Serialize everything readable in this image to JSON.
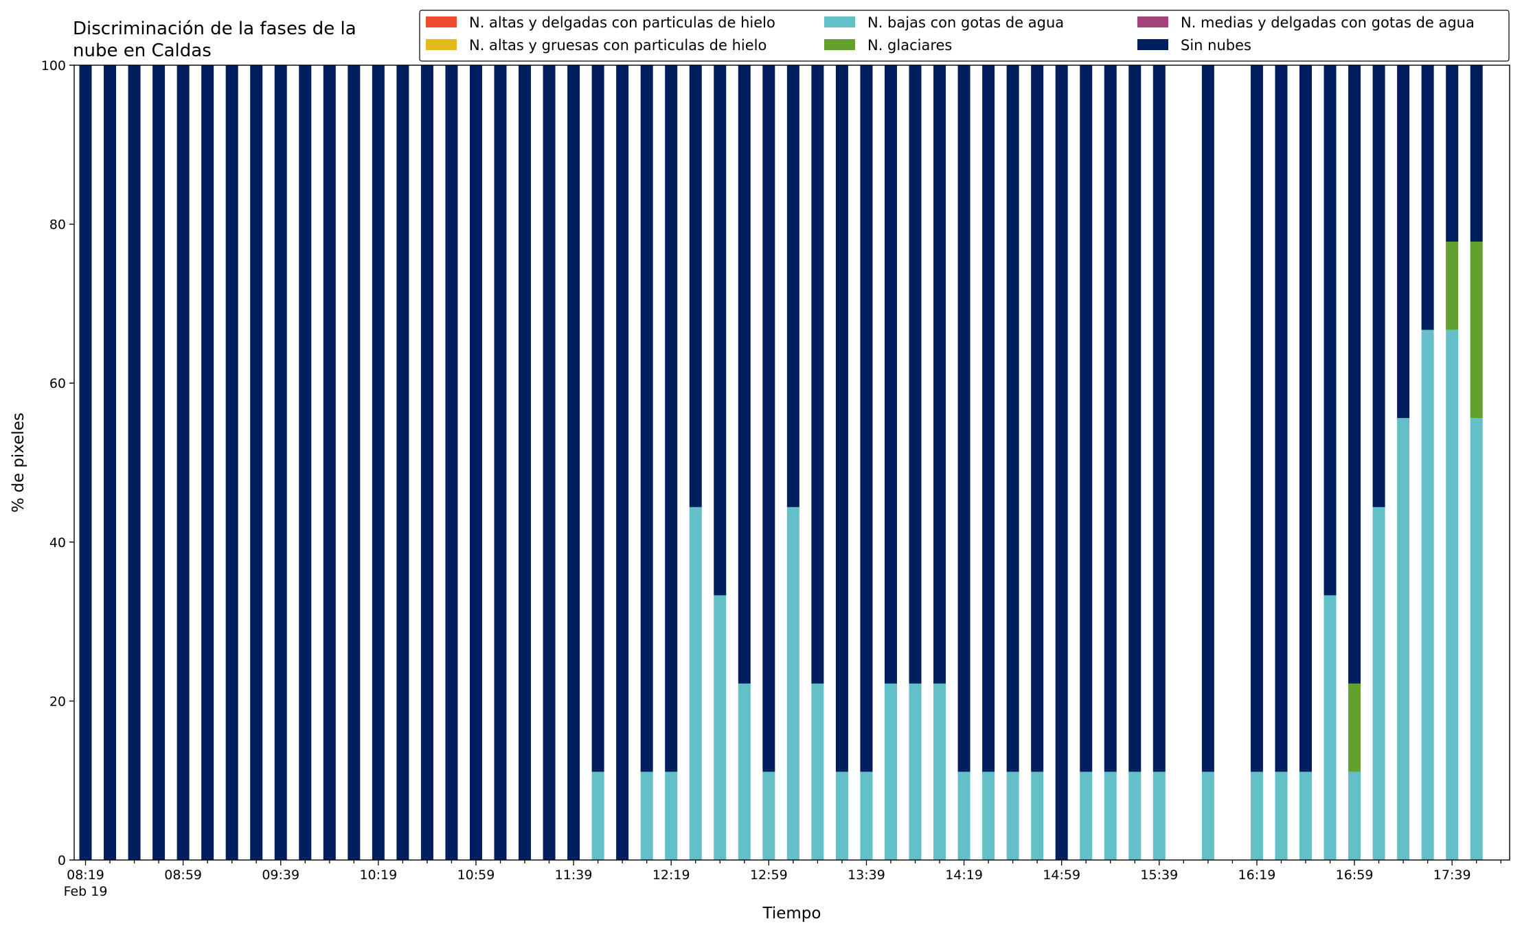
{
  "chart_data": {
    "type": "bar",
    "stacked": true,
    "title": "Discriminación de la fases de la nube en Caldas",
    "title_lines": [
      "Discriminación de la fases de la",
      "nube en Caldas"
    ],
    "xlabel": "Tiempo",
    "ylabel": "% de pixeles",
    "ylim": [
      0,
      100
    ],
    "yticks": [
      0,
      20,
      40,
      60,
      80,
      100
    ],
    "x_tick_labels": [
      "08:19",
      "08:59",
      "09:39",
      "10:19",
      "10:59",
      "11:39",
      "12:19",
      "12:59",
      "13:39",
      "14:19",
      "14:59",
      "15:39",
      "16:19",
      "16:59",
      "17:39"
    ],
    "x_date_label": "Feb 19",
    "x_start_time": "08:19",
    "x_interval_minutes": 10,
    "grid": false,
    "legend_placement": "top-right",
    "series": [
      {
        "name": "N. altas y delgadas con particulas de hielo",
        "color": "#ee4c2c",
        "values": [
          0,
          0,
          0,
          0,
          0,
          0,
          0,
          0,
          0,
          0,
          0,
          0,
          0,
          0,
          0,
          0,
          0,
          0,
          0,
          0,
          0,
          0,
          0,
          0,
          0,
          0,
          0,
          0,
          0,
          0,
          0,
          0,
          0,
          0,
          0,
          0,
          0,
          0,
          0,
          0,
          0,
          0,
          0,
          0,
          0,
          0,
          0,
          0,
          0,
          0,
          0,
          0,
          0,
          0,
          0,
          0,
          0,
          0,
          0
        ]
      },
      {
        "name": "N. altas y gruesas con particulas de hielo",
        "color": "#e6b91c",
        "values": [
          0,
          0,
          0,
          0,
          0,
          0,
          0,
          0,
          0,
          0,
          0,
          0,
          0,
          0,
          0,
          0,
          0,
          0,
          0,
          0,
          0,
          0,
          0,
          0,
          0,
          0,
          0,
          0,
          0,
          0,
          0,
          0,
          0,
          0,
          0,
          0,
          0,
          0,
          0,
          0,
          0,
          0,
          0,
          0,
          0,
          0,
          0,
          0,
          0,
          0,
          0,
          0,
          0,
          0,
          0,
          0,
          0,
          0,
          0
        ]
      },
      {
        "name": "N. bajas con gotas de agua",
        "color": "#63bfc8",
        "values": [
          0,
          0,
          0,
          0,
          0,
          0,
          0,
          0,
          0,
          0,
          0,
          0,
          0,
          0,
          0,
          0,
          0,
          0,
          0,
          0,
          0,
          11.1,
          0,
          11.1,
          11.1,
          44.4,
          33.3,
          22.2,
          11.1,
          44.4,
          22.2,
          11.1,
          11.1,
          22.2,
          22.2,
          22.2,
          11.1,
          11.1,
          11.1,
          11.1,
          0,
          11.1,
          11.1,
          11.1,
          11.1,
          0,
          11.1,
          0,
          11.1,
          11.1,
          11.1,
          33.3,
          11.1,
          44.4,
          55.6,
          66.7,
          66.7,
          55.6
        ]
      },
      {
        "name": "N. glaciares",
        "color": "#63a12e",
        "values": [
          0,
          0,
          0,
          0,
          0,
          0,
          0,
          0,
          0,
          0,
          0,
          0,
          0,
          0,
          0,
          0,
          0,
          0,
          0,
          0,
          0,
          0,
          0,
          0,
          0,
          0,
          0,
          0,
          0,
          0,
          0,
          0,
          0,
          0,
          0,
          0,
          0,
          0,
          0,
          0,
          0,
          0,
          0,
          0,
          0,
          0,
          0,
          0,
          0,
          0,
          0,
          0,
          11.1,
          0,
          0,
          0,
          11.1,
          22.2
        ]
      },
      {
        "name": "N. medias y delgadas con gotas de agua",
        "color": "#a3457a",
        "values": [
          0,
          0,
          0,
          0,
          0,
          0,
          0,
          0,
          0,
          0,
          0,
          0,
          0,
          0,
          0,
          0,
          0,
          0,
          0,
          0,
          0,
          0,
          0,
          0,
          0,
          0,
          0,
          0,
          0,
          0,
          0,
          0,
          0,
          0,
          0,
          0,
          0,
          0,
          0,
          0,
          0,
          0,
          0,
          0,
          0,
          0,
          0,
          0,
          0,
          0,
          0,
          0,
          0,
          0,
          0,
          0,
          0,
          0
        ]
      },
      {
        "name": "Sin nubes",
        "color": "#011f5e",
        "values": [
          100,
          100,
          100,
          100,
          100,
          100,
          100,
          100,
          100,
          100,
          100,
          100,
          100,
          100,
          100,
          100,
          100,
          100,
          100,
          100,
          100,
          88.9,
          100,
          88.9,
          88.9,
          55.6,
          66.7,
          77.8,
          88.9,
          55.6,
          77.8,
          88.9,
          88.9,
          77.8,
          77.8,
          77.8,
          88.9,
          88.9,
          88.9,
          88.9,
          100,
          88.9,
          88.9,
          88.9,
          88.9,
          0,
          88.9,
          0,
          88.9,
          88.9,
          88.9,
          66.7,
          77.8,
          55.6,
          44.4,
          33.3,
          22.2,
          22.2
        ]
      }
    ],
    "missing_indices": [
      45,
      47
    ]
  }
}
